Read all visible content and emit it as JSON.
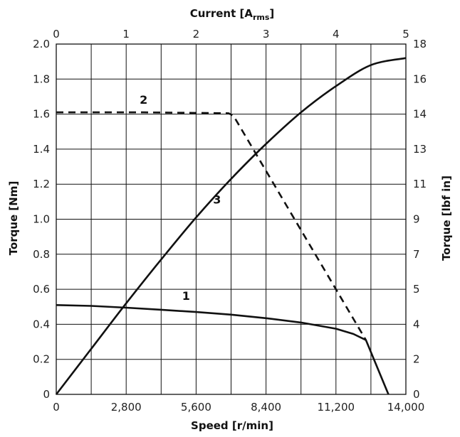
{
  "chart_data": {
    "type": "line",
    "x_bottom": {
      "label": "Speed [r/min]",
      "lim": [
        0,
        14000
      ],
      "ticks": [
        "0",
        "2,800",
        "5,600",
        "8,400",
        "11,200",
        "14,000"
      ],
      "tick_values": [
        0,
        2800,
        5600,
        8400,
        11200,
        14000
      ]
    },
    "x_top": {
      "label_main": "Current [A",
      "label_sub": "rms",
      "label_end": "]",
      "lim": [
        0,
        5
      ],
      "ticks": [
        "0",
        "1",
        "2",
        "3",
        "4",
        "5"
      ],
      "tick_values": [
        0,
        1,
        2,
        3,
        4,
        5
      ]
    },
    "y_left": {
      "label": "Torque [Nm]",
      "lim": [
        0,
        2.0
      ],
      "ticks": [
        "0",
        "0.2",
        "0.4",
        "0.6",
        "0.8",
        "1.0",
        "1.2",
        "1.4",
        "1.6",
        "1.8",
        "2.0"
      ],
      "tick_values": [
        0,
        0.2,
        0.4,
        0.6,
        0.8,
        1.0,
        1.2,
        1.4,
        1.6,
        1.8,
        2.0
      ]
    },
    "y_right": {
      "label": "Torque [lbf in]",
      "ticks": [
        "0",
        "2",
        "4",
        "5",
        "7",
        "9",
        "11",
        "13",
        "14",
        "16",
        "18"
      ]
    },
    "grid": true,
    "series": [
      {
        "name": "1",
        "style": "solid",
        "x_axis": "speed",
        "points": [
          [
            0,
            0.51
          ],
          [
            1400,
            0.505
          ],
          [
            2800,
            0.495
          ],
          [
            4200,
            0.483
          ],
          [
            5600,
            0.47
          ],
          [
            7000,
            0.455
          ],
          [
            8400,
            0.435
          ],
          [
            9800,
            0.41
          ],
          [
            11200,
            0.375
          ],
          [
            11900,
            0.345
          ],
          [
            12400,
            0.31
          ],
          [
            13300,
            0.0
          ]
        ],
        "label_at": [
          5200,
          0.54
        ]
      },
      {
        "name": "2",
        "style": "dashed",
        "x_axis": "speed",
        "points": [
          [
            0,
            1.61
          ],
          [
            3500,
            1.61
          ],
          [
            6900,
            1.605
          ],
          [
            7100,
            1.59
          ],
          [
            12400,
            0.31
          ]
        ],
        "label_at": [
          3500,
          1.66
        ]
      },
      {
        "name": "3",
        "style": "solid",
        "x_axis": "current",
        "points": [
          [
            0,
            0
          ],
          [
            0.5,
            0.26
          ],
          [
            1.0,
            0.52
          ],
          [
            1.5,
            0.77
          ],
          [
            2.0,
            1.01
          ],
          [
            2.5,
            1.23
          ],
          [
            3.0,
            1.43
          ],
          [
            3.5,
            1.61
          ],
          [
            4.0,
            1.76
          ],
          [
            4.5,
            1.88
          ],
          [
            5.0,
            1.92
          ]
        ],
        "label_at": [
          2.3,
          1.09
        ]
      }
    ]
  }
}
